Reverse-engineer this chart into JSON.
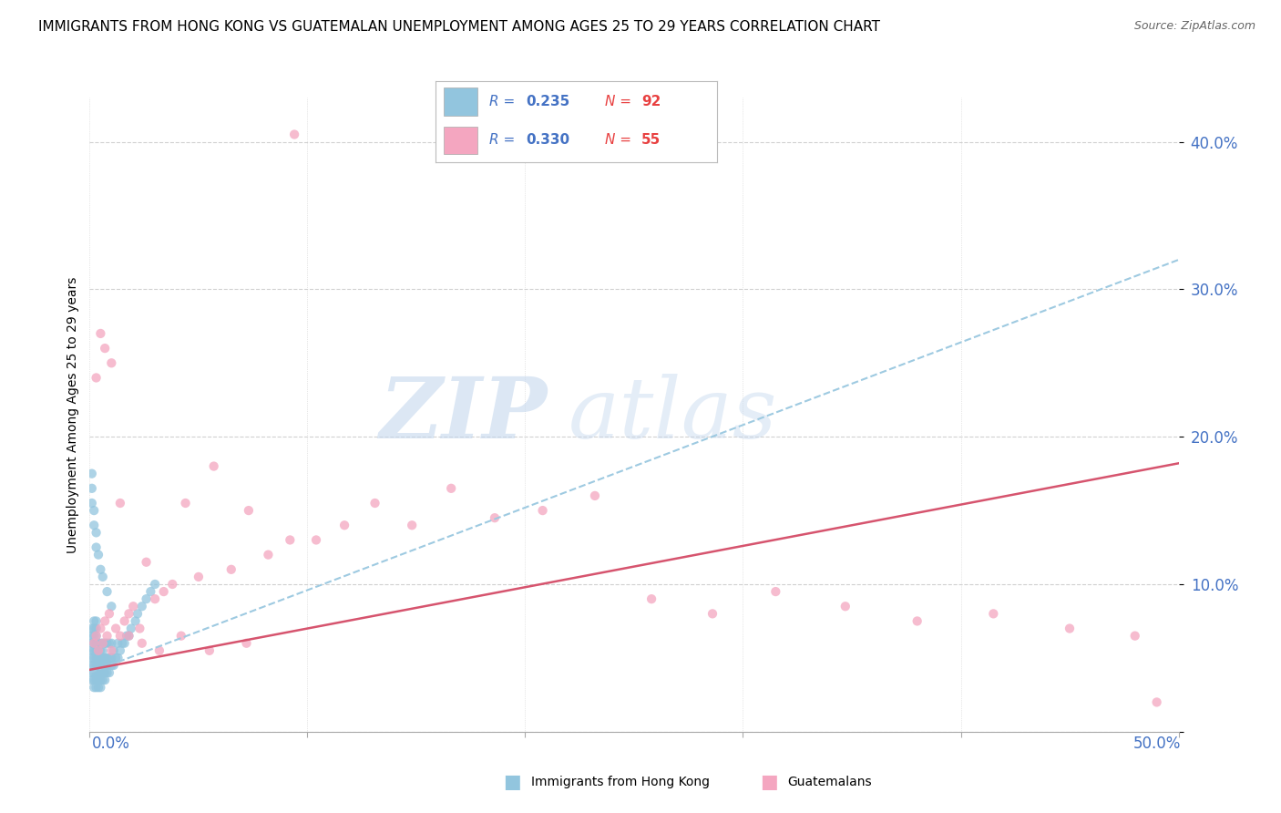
{
  "title": "IMMIGRANTS FROM HONG KONG VS GUATEMALAN UNEMPLOYMENT AMONG AGES 25 TO 29 YEARS CORRELATION CHART",
  "source": "Source: ZipAtlas.com",
  "ylabel": "Unemployment Among Ages 25 to 29 years",
  "blue_label": "Immigrants from Hong Kong",
  "pink_label": "Guatemalans",
  "blue_R": 0.235,
  "blue_N": 92,
  "pink_R": 0.33,
  "pink_N": 55,
  "blue_color": "#92c5de",
  "pink_color": "#f4a6c0",
  "blue_line_color": "#9ecae1",
  "pink_line_color": "#d6546e",
  "xlim": [
    0.0,
    0.5
  ],
  "ylim": [
    0.0,
    0.43
  ],
  "yticks": [
    0.0,
    0.1,
    0.2,
    0.3,
    0.4
  ],
  "grid_color": "#d0d0d0",
  "background_color": "#ffffff",
  "title_fontsize": 11,
  "axis_label_fontsize": 10,
  "tick_fontsize": 12,
  "blue_x": [
    0.001,
    0.001,
    0.001,
    0.001,
    0.001,
    0.001,
    0.001,
    0.001,
    0.002,
    0.002,
    0.002,
    0.002,
    0.002,
    0.002,
    0.002,
    0.002,
    0.002,
    0.002,
    0.003,
    0.003,
    0.003,
    0.003,
    0.003,
    0.003,
    0.003,
    0.003,
    0.003,
    0.003,
    0.004,
    0.004,
    0.004,
    0.004,
    0.004,
    0.004,
    0.004,
    0.005,
    0.005,
    0.005,
    0.005,
    0.005,
    0.005,
    0.005,
    0.006,
    0.006,
    0.006,
    0.006,
    0.006,
    0.006,
    0.007,
    0.007,
    0.007,
    0.007,
    0.007,
    0.008,
    0.008,
    0.008,
    0.008,
    0.009,
    0.009,
    0.009,
    0.01,
    0.01,
    0.01,
    0.011,
    0.011,
    0.012,
    0.013,
    0.013,
    0.014,
    0.015,
    0.016,
    0.017,
    0.018,
    0.019,
    0.021,
    0.022,
    0.024,
    0.026,
    0.028,
    0.03,
    0.001,
    0.001,
    0.001,
    0.002,
    0.002,
    0.003,
    0.003,
    0.004,
    0.005,
    0.006,
    0.008,
    0.01
  ],
  "blue_y": [
    0.035,
    0.04,
    0.045,
    0.05,
    0.055,
    0.06,
    0.065,
    0.07,
    0.03,
    0.035,
    0.04,
    0.045,
    0.05,
    0.055,
    0.06,
    0.065,
    0.07,
    0.075,
    0.03,
    0.035,
    0.04,
    0.045,
    0.05,
    0.055,
    0.06,
    0.065,
    0.07,
    0.075,
    0.03,
    0.035,
    0.04,
    0.045,
    0.05,
    0.055,
    0.06,
    0.03,
    0.035,
    0.04,
    0.045,
    0.05,
    0.055,
    0.06,
    0.035,
    0.04,
    0.045,
    0.05,
    0.055,
    0.06,
    0.035,
    0.04,
    0.045,
    0.05,
    0.06,
    0.04,
    0.045,
    0.05,
    0.06,
    0.04,
    0.05,
    0.06,
    0.045,
    0.05,
    0.06,
    0.045,
    0.055,
    0.05,
    0.05,
    0.06,
    0.055,
    0.06,
    0.06,
    0.065,
    0.065,
    0.07,
    0.075,
    0.08,
    0.085,
    0.09,
    0.095,
    0.1,
    0.155,
    0.165,
    0.175,
    0.14,
    0.15,
    0.135,
    0.125,
    0.12,
    0.11,
    0.105,
    0.095,
    0.085
  ],
  "pink_x": [
    0.002,
    0.003,
    0.004,
    0.005,
    0.006,
    0.007,
    0.008,
    0.009,
    0.01,
    0.012,
    0.014,
    0.016,
    0.018,
    0.02,
    0.023,
    0.026,
    0.03,
    0.034,
    0.038,
    0.044,
    0.05,
    0.057,
    0.065,
    0.073,
    0.082,
    0.092,
    0.104,
    0.117,
    0.131,
    0.148,
    0.166,
    0.186,
    0.208,
    0.232,
    0.258,
    0.286,
    0.315,
    0.347,
    0.38,
    0.415,
    0.45,
    0.48,
    0.49,
    0.003,
    0.005,
    0.007,
    0.01,
    0.014,
    0.018,
    0.024,
    0.032,
    0.042,
    0.055,
    0.072,
    0.094
  ],
  "pink_y": [
    0.06,
    0.065,
    0.055,
    0.07,
    0.06,
    0.075,
    0.065,
    0.08,
    0.055,
    0.07,
    0.065,
    0.075,
    0.08,
    0.085,
    0.07,
    0.115,
    0.09,
    0.095,
    0.1,
    0.155,
    0.105,
    0.18,
    0.11,
    0.15,
    0.12,
    0.13,
    0.13,
    0.14,
    0.155,
    0.14,
    0.165,
    0.145,
    0.15,
    0.16,
    0.09,
    0.08,
    0.095,
    0.085,
    0.075,
    0.08,
    0.07,
    0.065,
    0.02,
    0.24,
    0.27,
    0.26,
    0.25,
    0.155,
    0.065,
    0.06,
    0.055,
    0.065,
    0.055,
    0.06,
    0.405
  ],
  "blue_trend_x0": 0.0,
  "blue_trend_y0": 0.04,
  "blue_trend_x1": 0.5,
  "blue_trend_y1": 0.32,
  "pink_trend_x0": 0.0,
  "pink_trend_y0": 0.042,
  "pink_trend_x1": 0.5,
  "pink_trend_y1": 0.182
}
